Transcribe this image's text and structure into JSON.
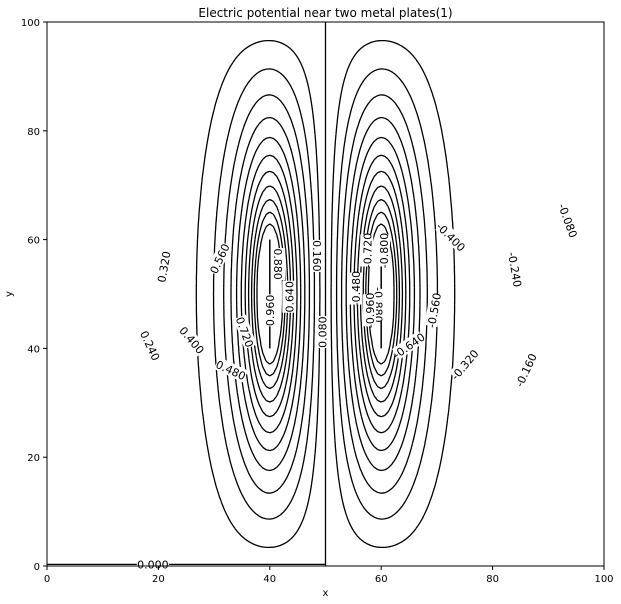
{
  "chart_data": {
    "type": "contour",
    "title": "Electric potential near two metal plates(1)",
    "xlabel": "x",
    "ylabel": "y",
    "xlim": [
      0,
      100
    ],
    "ylim": [
      0,
      100
    ],
    "x_ticks": [
      0,
      20,
      40,
      60,
      80,
      100
    ],
    "y_ticks": [
      0,
      20,
      40,
      60,
      80,
      100
    ],
    "grid": false,
    "line_color": "#000000",
    "negative_linestyle": "dashed",
    "plates": [
      {
        "x": 40,
        "y_range": [
          40,
          60
        ],
        "potential": 1.0
      },
      {
        "x": 60,
        "y_range": [
          40,
          60
        ],
        "potential": -1.0
      }
    ],
    "levels": [
      -0.96,
      -0.88,
      -0.8,
      -0.72,
      -0.64,
      -0.56,
      -0.48,
      -0.4,
      -0.32,
      -0.24,
      -0.16,
      -0.08,
      0.0,
      0.08,
      0.16,
      0.24,
      0.32,
      0.4,
      0.48,
      0.56,
      0.64,
      0.72,
      0.8,
      0.88,
      0.96
    ],
    "contour_labels": [
      {
        "text": "0.320",
        "x": 21,
        "y": 55,
        "rotation": -80
      },
      {
        "text": "0.240",
        "x": 18.5,
        "y": 40.5,
        "rotation": 65
      },
      {
        "text": "0.560",
        "x": 31,
        "y": 56.5,
        "rotation": -65
      },
      {
        "text": "0.400",
        "x": 26,
        "y": 41.5,
        "rotation": 50
      },
      {
        "text": "0.480",
        "x": 33,
        "y": 36,
        "rotation": 25
      },
      {
        "text": "0.720",
        "x": 35.5,
        "y": 43,
        "rotation": 70
      },
      {
        "text": "0.960",
        "x": 40,
        "y": 47,
        "rotation": -90
      },
      {
        "text": "0.880",
        "x": 41.5,
        "y": 55.5,
        "rotation": 90
      },
      {
        "text": "0.640",
        "x": 43.5,
        "y": 49.5,
        "rotation": -90
      },
      {
        "text": "0.160",
        "x": 48.5,
        "y": 57,
        "rotation": 90
      },
      {
        "text": "0.080",
        "x": 49.5,
        "y": 43,
        "rotation": -90
      },
      {
        "text": "-0.080",
        "x": 93.5,
        "y": 63.5,
        "rotation": 70
      },
      {
        "text": "-0.240",
        "x": 84,
        "y": 54.5,
        "rotation": 80
      },
      {
        "text": "-0.160",
        "x": 86,
        "y": 36,
        "rotation": -65
      },
      {
        "text": "-0.400",
        "x": 72.5,
        "y": 60.5,
        "rotation": 45
      },
      {
        "text": "-0.320",
        "x": 75,
        "y": 37,
        "rotation": -50
      },
      {
        "text": "-0.560",
        "x": 69.5,
        "y": 47,
        "rotation": -80
      },
      {
        "text": "-0.640",
        "x": 65,
        "y": 40.5,
        "rotation": -35
      },
      {
        "text": "-0.480",
        "x": 55.5,
        "y": 51,
        "rotation": -90
      },
      {
        "text": "-0.720",
        "x": 57.5,
        "y": 58,
        "rotation": -90
      },
      {
        "text": "-0.800",
        "x": 60.5,
        "y": 58,
        "rotation": -90
      },
      {
        "text": "-0.880",
        "x": 59.5,
        "y": 48,
        "rotation": 90
      },
      {
        "text": "-0.960",
        "x": 58,
        "y": 47,
        "rotation": -90
      },
      {
        "text": "0.000",
        "x": 19,
        "y": 0.3,
        "rotation": 0
      }
    ]
  }
}
